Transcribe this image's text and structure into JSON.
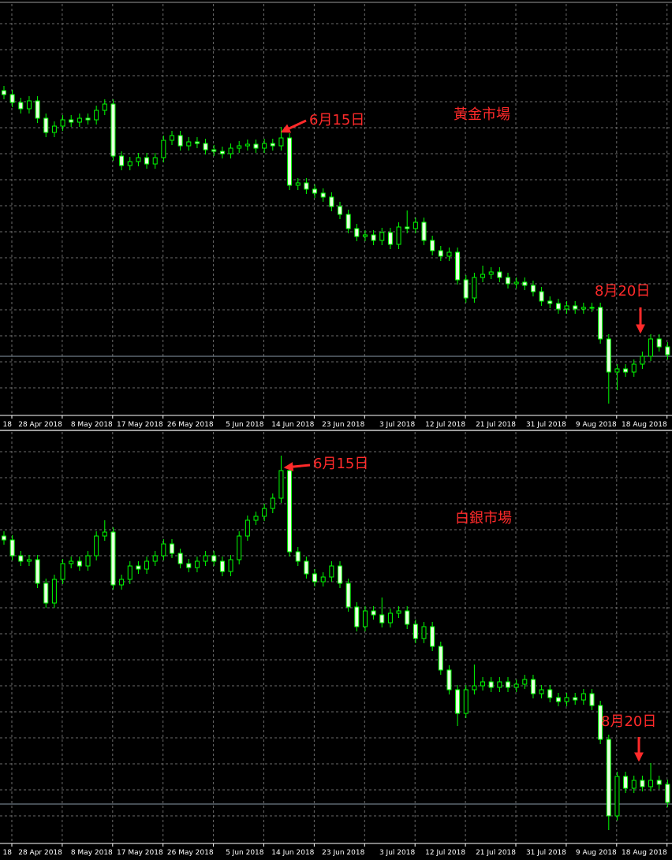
{
  "chart_data": [
    {
      "type": "candlestick",
      "color": "#00ff00",
      "up_fill": "#000000",
      "down_fill": "#e8ffe0",
      "categories": [
        "18",
        null,
        null,
        null,
        null,
        null,
        "28 Apr 2018",
        null,
        null,
        null,
        null,
        null,
        "8 May 2018",
        null,
        null,
        null,
        null,
        null,
        "17 May 2018",
        null,
        null,
        null,
        null,
        null,
        "26 May 2018",
        null,
        null,
        null,
        null,
        null,
        "5 Jun 2018",
        null,
        null,
        null,
        null,
        null,
        "14 Jun 2018",
        null,
        null,
        null,
        null,
        null,
        "23 Jun 2018",
        null,
        null,
        null,
        null,
        null,
        "3 Jul 2018",
        null,
        null,
        null,
        null,
        null,
        "12 Jul 2018",
        null,
        null,
        null,
        null,
        null,
        "21 Jul 2018",
        null,
        null,
        null,
        null,
        null,
        "31 Jul 2018",
        null,
        null,
        null,
        null,
        null,
        "9 Aug 2018",
        null,
        null,
        null,
        null,
        null,
        "18 Aug 2018",
        null
      ],
      "open": [
        410,
        405,
        395,
        387,
        397,
        375,
        357,
        365,
        373,
        370,
        375,
        373,
        385,
        393,
        327,
        315,
        320,
        325,
        317,
        325,
        347,
        353,
        340,
        345,
        343,
        335,
        333,
        330,
        337,
        340,
        342,
        337,
        343,
        340,
        350,
        290,
        293,
        285,
        280,
        275,
        263,
        253,
        235,
        225,
        227,
        220,
        230,
        215,
        237,
        235,
        243,
        220,
        207,
        200,
        205,
        170,
        147,
        173,
        177,
        180,
        173,
        165,
        167,
        163,
        155,
        143,
        140,
        133,
        137,
        133,
        135,
        135,
        95,
        53,
        57,
        53,
        63,
        73,
        95,
        85
      ],
      "high": [
        416,
        411,
        401,
        403,
        403,
        381,
        371,
        379,
        379,
        381,
        381,
        391,
        399,
        399,
        333,
        326,
        331,
        331,
        331,
        353,
        359,
        359,
        351,
        351,
        349,
        341,
        339,
        343,
        346,
        348,
        348,
        349,
        349,
        364,
        356,
        299,
        299,
        291,
        286,
        281,
        269,
        259,
        241,
        233,
        233,
        236,
        236,
        243,
        258,
        249,
        249,
        226,
        213,
        211,
        211,
        176,
        179,
        188,
        186,
        186,
        179,
        173,
        173,
        169,
        161,
        149,
        146,
        143,
        143,
        141,
        141,
        141,
        101,
        63,
        63,
        69,
        79,
        101,
        101,
        91
      ],
      "low": [
        399,
        389,
        381,
        381,
        369,
        351,
        351,
        359,
        364,
        364,
        367,
        367,
        379,
        321,
        309,
        309,
        314,
        311,
        311,
        319,
        341,
        334,
        334,
        337,
        329,
        327,
        324,
        324,
        331,
        334,
        331,
        331,
        334,
        334,
        284,
        284,
        279,
        274,
        269,
        257,
        247,
        229,
        219,
        219,
        214,
        214,
        209,
        209,
        229,
        229,
        214,
        201,
        194,
        194,
        164,
        141,
        141,
        167,
        171,
        167,
        159,
        159,
        157,
        149,
        137,
        134,
        127,
        127,
        127,
        127,
        129,
        89,
        13,
        30,
        47,
        47,
        57,
        67,
        79,
        69
      ],
      "close": [
        405,
        395,
        387,
        397,
        375,
        357,
        365,
        373,
        370,
        375,
        373,
        385,
        393,
        327,
        315,
        320,
        325,
        317,
        325,
        347,
        353,
        340,
        345,
        343,
        335,
        333,
        330,
        337,
        340,
        342,
        337,
        343,
        340,
        350,
        290,
        293,
        285,
        280,
        275,
        263,
        253,
        235,
        225,
        227,
        220,
        230,
        215,
        237,
        235,
        243,
        220,
        207,
        200,
        205,
        170,
        147,
        173,
        177,
        180,
        173,
        165,
        167,
        163,
        155,
        143,
        140,
        133,
        137,
        133,
        135,
        135,
        95,
        53,
        57,
        53,
        63,
        73,
        95,
        85,
        75
      ],
      "last_price": 73,
      "ylim": [
        0,
        520
      ],
      "annotations": [
        {
          "text": "6月15日"
        },
        {
          "text": "黃金市場"
        },
        {
          "text": "8月20日"
        }
      ]
    },
    {
      "type": "candlestick",
      "color": "#00ff00",
      "up_fill": "#000000",
      "down_fill": "#e8ffe0",
      "categories": [
        "18",
        null,
        null,
        null,
        null,
        null,
        "28 Apr 2018",
        null,
        null,
        null,
        null,
        null,
        "8 May 2018",
        null,
        null,
        null,
        null,
        null,
        "17 May 2018",
        null,
        null,
        null,
        null,
        null,
        "26 May 2018",
        null,
        null,
        null,
        null,
        null,
        "5 Jun 2018",
        null,
        null,
        null,
        null,
        null,
        "14 Jun 2018",
        null,
        null,
        null,
        null,
        null,
        "23 Jun 2018",
        null,
        null,
        null,
        null,
        null,
        "3 Jul 2018",
        null,
        null,
        null,
        null,
        null,
        "12 Jul 2018",
        null,
        null,
        null,
        null,
        null,
        "21 Jul 2018",
        null,
        null,
        null,
        null,
        null,
        "31 Jul 2018",
        null,
        null,
        null,
        null,
        null,
        "9 Aug 2018",
        null,
        null,
        null,
        null,
        null,
        "18 Aug 2018",
        null
      ],
      "open": [
        388,
        383,
        363,
        356,
        358,
        328,
        303,
        333,
        353,
        356,
        350,
        363,
        388,
        393,
        326,
        333,
        350,
        346,
        356,
        363,
        378,
        366,
        353,
        348,
        356,
        363,
        356,
        343,
        358,
        388,
        408,
        413,
        423,
        436,
        471,
        368,
        356,
        340,
        330,
        336,
        350,
        328,
        298,
        273,
        293,
        288,
        278,
        290,
        293,
        276,
        258,
        273,
        248,
        218,
        193,
        163,
        193,
        198,
        203,
        196,
        203,
        196,
        200,
        206,
        188,
        193,
        183,
        178,
        183,
        180,
        188,
        173,
        130,
        33,
        83,
        68,
        78,
        70,
        78,
        73
      ],
      "high": [
        394,
        389,
        369,
        364,
        364,
        334,
        339,
        359,
        362,
        362,
        369,
        394,
        408,
        399,
        339,
        356,
        356,
        362,
        369,
        384,
        384,
        372,
        359,
        362,
        369,
        369,
        362,
        364,
        394,
        414,
        419,
        429,
        442,
        490,
        477,
        374,
        362,
        346,
        342,
        356,
        356,
        334,
        304,
        299,
        299,
        310,
        296,
        299,
        299,
        282,
        279,
        279,
        254,
        224,
        199,
        199,
        225,
        209,
        209,
        209,
        209,
        206,
        212,
        212,
        199,
        199,
        189,
        189,
        189,
        194,
        194,
        179,
        136,
        89,
        89,
        84,
        84,
        100,
        84,
        79
      ],
      "low": [
        377,
        357,
        350,
        350,
        322,
        297,
        297,
        327,
        347,
        344,
        344,
        357,
        382,
        320,
        320,
        327,
        340,
        340,
        350,
        357,
        360,
        347,
        342,
        342,
        350,
        350,
        337,
        337,
        352,
        382,
        402,
        407,
        417,
        430,
        362,
        350,
        334,
        324,
        324,
        330,
        322,
        292,
        267,
        267,
        282,
        272,
        272,
        284,
        270,
        252,
        252,
        242,
        212,
        187,
        147,
        157,
        187,
        192,
        190,
        190,
        190,
        190,
        194,
        182,
        182,
        177,
        172,
        172,
        174,
        174,
        167,
        124,
        15,
        27,
        62,
        62,
        64,
        64,
        67,
        44
      ],
      "close": [
        383,
        363,
        356,
        358,
        328,
        303,
        333,
        353,
        356,
        350,
        363,
        388,
        393,
        326,
        333,
        350,
        346,
        356,
        363,
        378,
        366,
        353,
        348,
        356,
        363,
        356,
        343,
        358,
        388,
        408,
        413,
        423,
        436,
        471,
        368,
        356,
        340,
        330,
        336,
        350,
        328,
        298,
        273,
        293,
        288,
        278,
        290,
        293,
        276,
        258,
        273,
        248,
        218,
        193,
        163,
        193,
        198,
        203,
        196,
        203,
        196,
        200,
        206,
        188,
        193,
        183,
        178,
        183,
        180,
        188,
        173,
        130,
        33,
        83,
        68,
        78,
        70,
        78,
        73,
        50
      ],
      "last_price": 48,
      "ylim": [
        0,
        520
      ],
      "annotations": [
        {
          "text": "6月15日"
        },
        {
          "text": "白銀市場"
        },
        {
          "text": "8月20日"
        }
      ]
    }
  ]
}
